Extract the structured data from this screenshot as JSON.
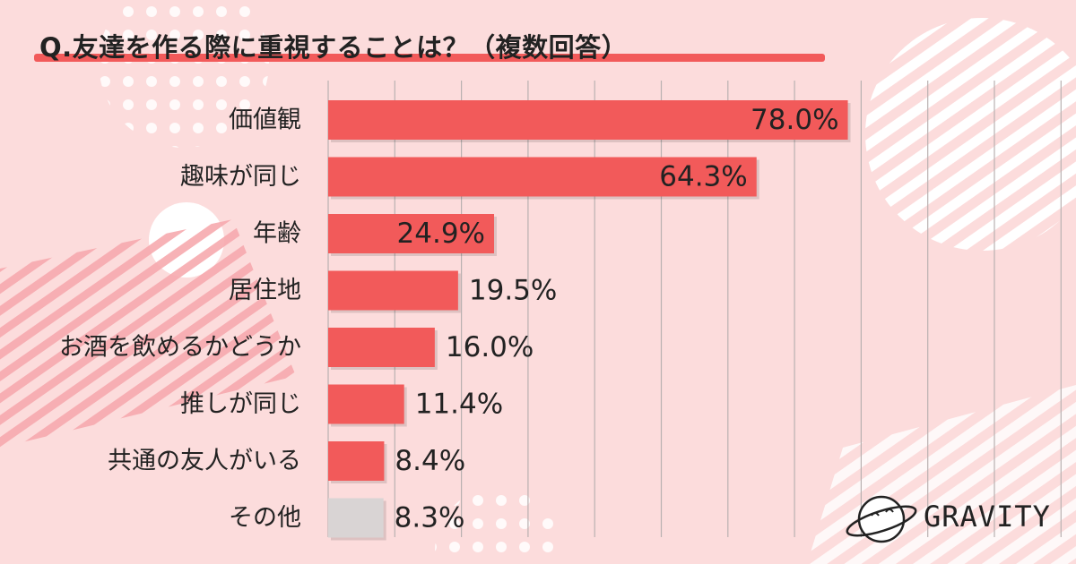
{
  "title": "Q.友達を作る際に重視することは？（複数回答）",
  "brand": "GRAVITY",
  "colors": {
    "bar": "#f25a5a",
    "other_bar": "#d9d4d4",
    "background": "#fcdcdc",
    "grid": "#b9b1b1"
  },
  "chart_data": {
    "type": "bar",
    "orientation": "horizontal",
    "categories": [
      "価値観",
      "趣味が同じ",
      "年齢",
      "居住地",
      "お酒を飲めるかどうか",
      "推しが同じ",
      "共通の友人がいる",
      "その他"
    ],
    "values": [
      78.0,
      64.3,
      24.9,
      19.5,
      16.0,
      11.4,
      8.4,
      8.3
    ],
    "value_labels": [
      "78.0%",
      "64.3%",
      "24.9%",
      "19.5%",
      "16.0%",
      "11.4%",
      "8.4%",
      "8.3%"
    ],
    "xlim": [
      0,
      110
    ],
    "grid": true
  }
}
